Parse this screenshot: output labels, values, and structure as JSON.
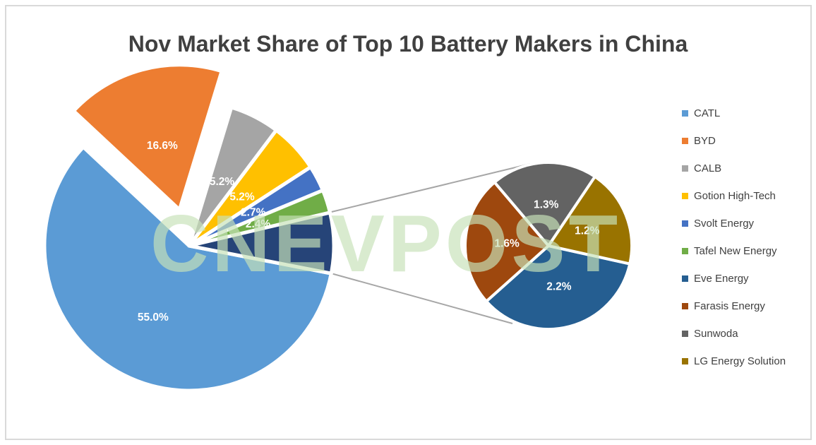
{
  "watermark": "CNEVPOST",
  "colors": {
    "background": "#FFFFFF",
    "frame_border": "#D9D9D9",
    "title_text": "#404040",
    "legend_text": "#404040"
  },
  "chart_data": {
    "type": "pie",
    "variant": "pie-of-pie",
    "title": "Nov Market Share of Top 10 Battery Makers in China",
    "unit": "%",
    "legend_position": "right",
    "grid": false,
    "label_color": "#FFFFFF",
    "connector_color": "#A6A6A6",
    "other_slice_color": "#264478",
    "series": [
      {
        "name": "CATL",
        "value": 55.0,
        "label": "55.0%",
        "color": "#5B9BD5",
        "pie": "main",
        "label_r": 0.55
      },
      {
        "name": "BYD",
        "value": 16.6,
        "label": "16.6%",
        "color": "#ED7D31",
        "pie": "main",
        "exploded": true,
        "label_r": 0.46
      },
      {
        "name": "CALB",
        "value": 5.2,
        "label": "5.2%",
        "color": "#A5A5A5",
        "pie": "main"
      },
      {
        "name": "Gotion High-Tech",
        "value": 5.2,
        "label": "5.2%",
        "color": "#FFC000",
        "pie": "main"
      },
      {
        "name": "Svolt Energy",
        "value": 2.7,
        "label": "2.7%",
        "color": "#4472C4",
        "pie": "main"
      },
      {
        "name": "Tafel New Energy",
        "value": 2.4,
        "label": "2.4%",
        "color": "#70AD47",
        "pie": "main"
      },
      {
        "name": "Eve Energy",
        "value": 2.2,
        "label": "2.2%",
        "color": "#255E91",
        "pie": "secondary"
      },
      {
        "name": "Farasis Energy",
        "value": 1.6,
        "label": "1.6%",
        "color": "#9E480E",
        "pie": "secondary"
      },
      {
        "name": "Sunwoda",
        "value": 1.3,
        "label": "1.3%",
        "color": "#636363",
        "pie": "secondary"
      },
      {
        "name": "LG Energy Solution",
        "value": 1.2,
        "label": "1.2%",
        "color": "#997300",
        "pie": "secondary"
      }
    ]
  }
}
